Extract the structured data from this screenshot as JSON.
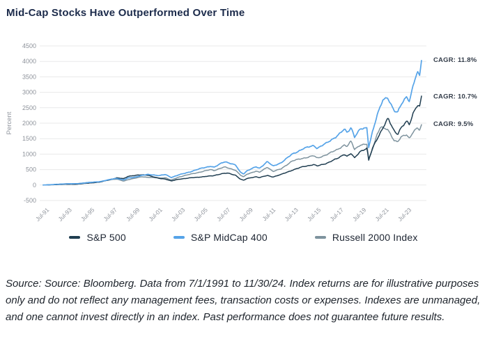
{
  "header": {
    "title": "Mid-Cap Stocks Have Outperformed Over Time"
  },
  "chart_data": {
    "type": "line",
    "ylabel": "Percent",
    "ylim": [
      -500,
      4500
    ],
    "yticks": [
      4500,
      4000,
      3500,
      3000,
      2500,
      2000,
      1500,
      1000,
      500,
      0,
      -500
    ],
    "xticks": [
      {
        "label": "Jul-91",
        "year": 1991.5
      },
      {
        "label": "Jul-93",
        "year": 1993.5
      },
      {
        "label": "Jul-95",
        "year": 1995.5
      },
      {
        "label": "Jul-97",
        "year": 1997.5
      },
      {
        "label": "Jul-99",
        "year": 1999.5
      },
      {
        "label": "Jul-01",
        "year": 2001.5
      },
      {
        "label": "Jul-03",
        "year": 2003.5
      },
      {
        "label": "Jul-05",
        "year": 2005.5
      },
      {
        "label": "Jul-07",
        "year": 2007.5
      },
      {
        "label": "Jul-09",
        "year": 2009.5
      },
      {
        "label": "Jul-11",
        "year": 2011.5
      },
      {
        "label": "Jul-13",
        "year": 2013.5
      },
      {
        "label": "Jul-15",
        "year": 2015.5
      },
      {
        "label": "Jul-17",
        "year": 2017.5
      },
      {
        "label": "Jul-19",
        "year": 2019.5
      },
      {
        "label": "Jul-21",
        "year": 2021.5
      },
      {
        "label": "Jul-23",
        "year": 2023.5
      }
    ],
    "x_range": [
      1991.5,
      2024.92
    ],
    "grid": "horizontal",
    "legend_position": "bottom",
    "colors": {
      "grid": "#e8e9ea",
      "axis_text": "#8e939b",
      "annotation_text": "#343d4a",
      "title_text": "#1c2b4b"
    },
    "series": [
      {
        "name": "S&P 500",
        "color": "#1f3d50",
        "cagr": "10.7%",
        "points": [
          [
            1991.5,
            0
          ],
          [
            1992,
            5
          ],
          [
            1992.5,
            12
          ],
          [
            1993.5,
            25
          ],
          [
            1994.5,
            28
          ],
          [
            1995.5,
            62
          ],
          [
            1996.5,
            95
          ],
          [
            1997.5,
            185
          ],
          [
            1998,
            230
          ],
          [
            1998.6,
            205
          ],
          [
            1999,
            285
          ],
          [
            1999.5,
            305
          ],
          [
            2000.2,
            330
          ],
          [
            2000.7,
            325
          ],
          [
            2001.2,
            265
          ],
          [
            2001.75,
            215
          ],
          [
            2002.3,
            195
          ],
          [
            2002.8,
            130
          ],
          [
            2003.5,
            190
          ],
          [
            2004.5,
            230
          ],
          [
            2005.5,
            265
          ],
          [
            2006.5,
            300
          ],
          [
            2007.3,
            370
          ],
          [
            2007.8,
            385
          ],
          [
            2008.5,
            315
          ],
          [
            2008.9,
            195
          ],
          [
            2009.2,
            150
          ],
          [
            2009.5,
            210
          ],
          [
            2010.3,
            270
          ],
          [
            2010.6,
            240
          ],
          [
            2011.3,
            310
          ],
          [
            2011.8,
            260
          ],
          [
            2012.5,
            340
          ],
          [
            2013.5,
            480
          ],
          [
            2014.5,
            600
          ],
          [
            2015.4,
            660
          ],
          [
            2015.7,
            615
          ],
          [
            2016.5,
            700
          ],
          [
            2017.5,
            860
          ],
          [
            2018.1,
            1000
          ],
          [
            2018.35,
            930
          ],
          [
            2018.7,
            1020
          ],
          [
            2019,
            870
          ],
          [
            2019.5,
            1090
          ],
          [
            2020.1,
            1190
          ],
          [
            2020.25,
            800
          ],
          [
            2020.6,
            1200
          ],
          [
            2021,
            1500
          ],
          [
            2021.5,
            1850
          ],
          [
            2021.95,
            2150
          ],
          [
            2022.5,
            1750
          ],
          [
            2022.8,
            1650
          ],
          [
            2023.1,
            1850
          ],
          [
            2023.6,
            2050
          ],
          [
            2023.85,
            1950
          ],
          [
            2024.2,
            2350
          ],
          [
            2024.55,
            2600
          ],
          [
            2024.75,
            2550
          ],
          [
            2024.92,
            2880
          ]
        ]
      },
      {
        "name": "S&P MidCap 400",
        "color": "#55a3e8",
        "cagr": "11.8%",
        "points": [
          [
            1991.5,
            0
          ],
          [
            1992,
            8
          ],
          [
            1992.5,
            18
          ],
          [
            1993.5,
            38
          ],
          [
            1994.5,
            42
          ],
          [
            1995.5,
            80
          ],
          [
            1996.5,
            110
          ],
          [
            1997.5,
            185
          ],
          [
            1998,
            215
          ],
          [
            1998.6,
            165
          ],
          [
            1999,
            225
          ],
          [
            1999.5,
            250
          ],
          [
            2000.2,
            310
          ],
          [
            2000.7,
            340
          ],
          [
            2001.2,
            330
          ],
          [
            2001.75,
            305
          ],
          [
            2002.3,
            340
          ],
          [
            2002.8,
            245
          ],
          [
            2003.5,
            330
          ],
          [
            2004.5,
            430
          ],
          [
            2005.5,
            545
          ],
          [
            2006.3,
            610
          ],
          [
            2006.6,
            570
          ],
          [
            2007.3,
            720
          ],
          [
            2007.55,
            760
          ],
          [
            2008.5,
            640
          ],
          [
            2008.9,
            420
          ],
          [
            2009.2,
            360
          ],
          [
            2009.5,
            460
          ],
          [
            2010.3,
            590
          ],
          [
            2010.6,
            540
          ],
          [
            2011.3,
            760
          ],
          [
            2011.8,
            610
          ],
          [
            2012.5,
            720
          ],
          [
            2013.5,
            1000
          ],
          [
            2014.5,
            1180
          ],
          [
            2015.4,
            1280
          ],
          [
            2015.7,
            1190
          ],
          [
            2016.5,
            1350
          ],
          [
            2017.5,
            1600
          ],
          [
            2018.1,
            1800
          ],
          [
            2018.35,
            1700
          ],
          [
            2018.7,
            1870
          ],
          [
            2019,
            1560
          ],
          [
            2019.5,
            1800
          ],
          [
            2020.1,
            1850
          ],
          [
            2020.25,
            1230
          ],
          [
            2020.6,
            1750
          ],
          [
            2021,
            2250
          ],
          [
            2021.5,
            2750
          ],
          [
            2021.9,
            2850
          ],
          [
            2022.5,
            2400
          ],
          [
            2022.8,
            2330
          ],
          [
            2023.1,
            2600
          ],
          [
            2023.6,
            2880
          ],
          [
            2023.85,
            2700
          ],
          [
            2024.2,
            3250
          ],
          [
            2024.55,
            3650
          ],
          [
            2024.75,
            3550
          ],
          [
            2024.92,
            4050
          ]
        ]
      },
      {
        "name": "Russell 2000 Index",
        "color": "#7e939e",
        "cagr": "9.5%",
        "points": [
          [
            1991.5,
            0
          ],
          [
            1992,
            7
          ],
          [
            1992.5,
            16
          ],
          [
            1993.5,
            42
          ],
          [
            1994.5,
            45
          ],
          [
            1995.5,
            80
          ],
          [
            1996.5,
            105
          ],
          [
            1997.5,
            175
          ],
          [
            1998,
            190
          ],
          [
            1998.6,
            128
          ],
          [
            1999,
            175
          ],
          [
            1999.5,
            210
          ],
          [
            2000.2,
            270
          ],
          [
            2000.7,
            250
          ],
          [
            2001.2,
            240
          ],
          [
            2001.75,
            228
          ],
          [
            2002.3,
            235
          ],
          [
            2002.8,
            158
          ],
          [
            2003.5,
            260
          ],
          [
            2004.5,
            350
          ],
          [
            2005.5,
            430
          ],
          [
            2006.3,
            500
          ],
          [
            2006.6,
            470
          ],
          [
            2007.3,
            560
          ],
          [
            2007.55,
            580
          ],
          [
            2008.5,
            480
          ],
          [
            2008.9,
            325
          ],
          [
            2009.2,
            260
          ],
          [
            2009.5,
            350
          ],
          [
            2010.3,
            450
          ],
          [
            2010.6,
            410
          ],
          [
            2011.3,
            580
          ],
          [
            2011.8,
            440
          ],
          [
            2012.5,
            520
          ],
          [
            2013.5,
            780
          ],
          [
            2014.5,
            870
          ],
          [
            2015.4,
            950
          ],
          [
            2015.7,
            865
          ],
          [
            2016.5,
            980
          ],
          [
            2017.5,
            1150
          ],
          [
            2018.1,
            1300
          ],
          [
            2018.35,
            1250
          ],
          [
            2018.7,
            1420
          ],
          [
            2019,
            1150
          ],
          [
            2019.5,
            1300
          ],
          [
            2020.1,
            1320
          ],
          [
            2020.25,
            820
          ],
          [
            2020.6,
            1180
          ],
          [
            2021,
            1650
          ],
          [
            2021.3,
            1900
          ],
          [
            2021.6,
            1820
          ],
          [
            2021.9,
            1800
          ],
          [
            2022.5,
            1450
          ],
          [
            2022.8,
            1400
          ],
          [
            2023.1,
            1550
          ],
          [
            2023.6,
            1620
          ],
          [
            2023.85,
            1500
          ],
          [
            2024.2,
            1750
          ],
          [
            2024.55,
            1850
          ],
          [
            2024.75,
            1780
          ],
          [
            2024.92,
            1950
          ]
        ]
      }
    ],
    "annotations": [
      {
        "text": "CAGR: 11.8%",
        "value": 4060
      },
      {
        "text": "CAGR: 10.7%",
        "value": 2880
      },
      {
        "text": "CAGR: 9.5%",
        "value": 1985
      }
    ]
  },
  "footer": {
    "source_text": "Source: Source: Bloomberg. Data from 7/1/1991 to 11/30/24. Index returns are for illustrative purposes only and do not reflect any management fees, transaction costs or expenses. Indexes are unmanaged, and one cannot invest directly in an index. Past performance does not guarantee future results."
  }
}
